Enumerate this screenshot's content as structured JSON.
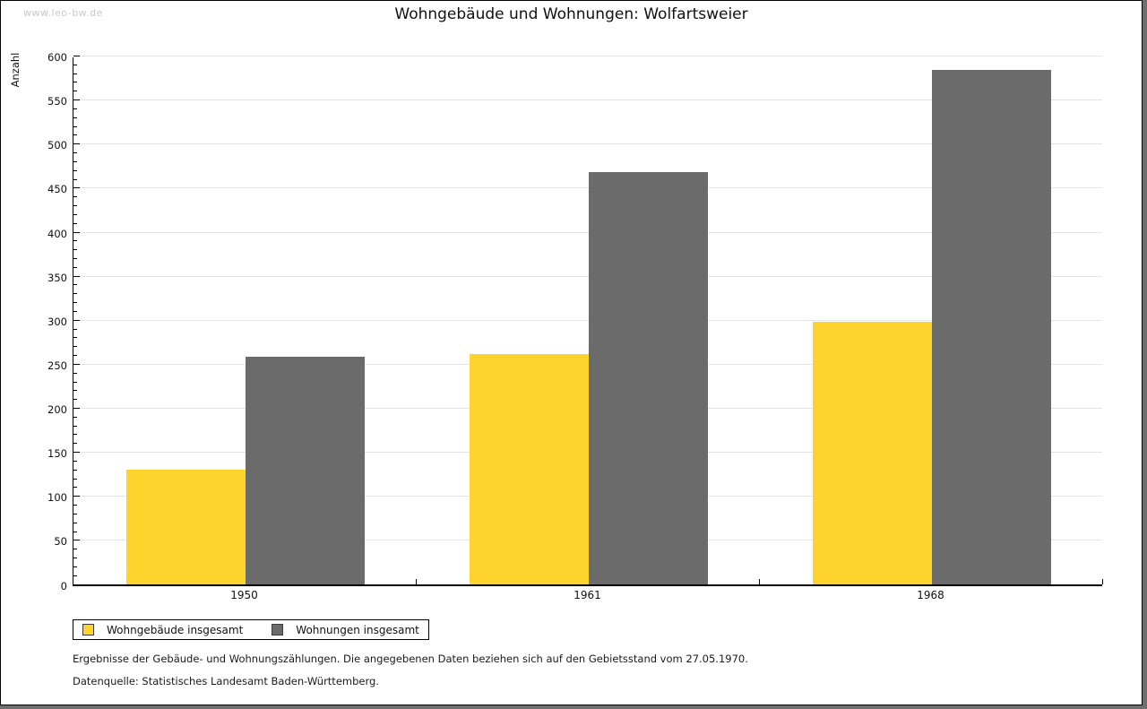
{
  "watermark": "www.leo-bw.de",
  "header": {
    "title": "Wohngebäude und Wohnungen: Wolfartsweier"
  },
  "chart_data": {
    "type": "bar",
    "title": "Wohngebäude und Wohnungen: Wolfartsweier",
    "categories": [
      "1950",
      "1961",
      "1968"
    ],
    "series": [
      {
        "name": "Wohngebäude insgesamt",
        "color": "#FDD42E",
        "values": [
          130,
          261,
          298
        ]
      },
      {
        "name": "Wohnungen insgesamt",
        "color": "#6B6B6B",
        "values": [
          258,
          468,
          584
        ]
      }
    ],
    "xlabel": "",
    "ylabel": "Anzahl",
    "ylim": [
      0,
      600
    ],
    "y_major_step": 50,
    "y_minor_step": 10,
    "grid": true,
    "legend_position": "bottom-left"
  },
  "footnotes": {
    "line1": "Ergebnisse der Gebäude- und Wohnungszählungen. Die angegebenen Daten beziehen sich auf den Gebietsstand vom 27.05.1970.",
    "line2": "Datenquelle: Statistisches Landesamt Baden-Württemberg."
  },
  "colors": {
    "bar_yellow": "#FDD42E",
    "bar_gray": "#6B6B6B",
    "gridline": "#E4E4E4",
    "frame_shadow": "#6E6E6E",
    "watermark": "#C9C9C9"
  }
}
